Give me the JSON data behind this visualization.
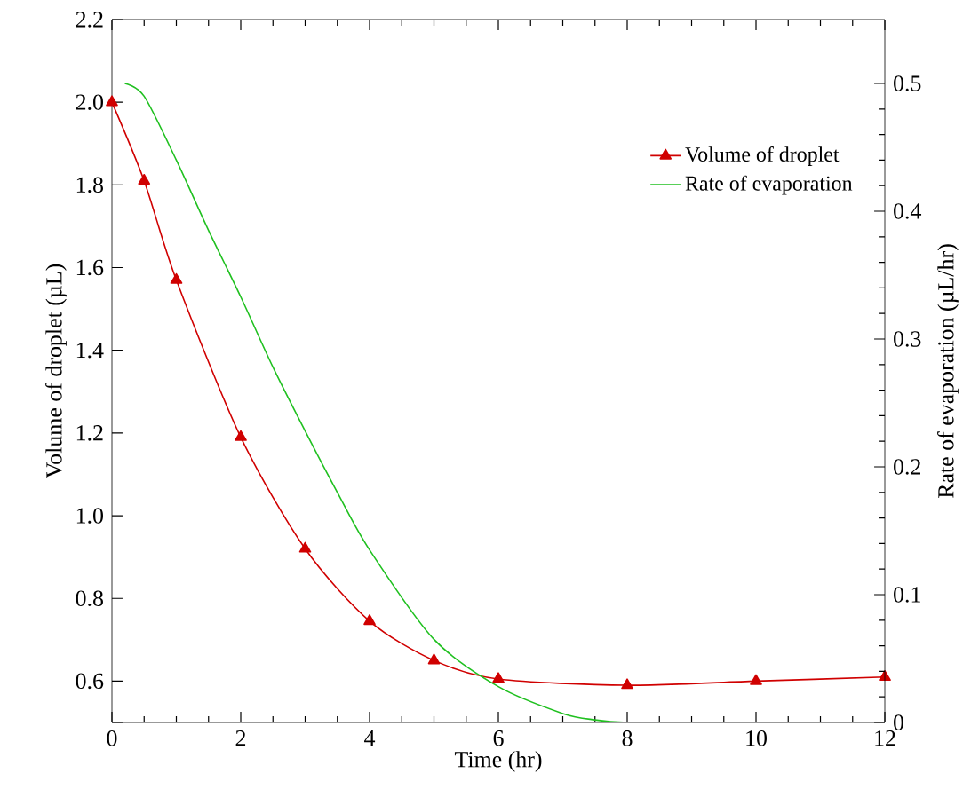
{
  "chart_data": {
    "type": "line",
    "xlabel": "Time (hr)",
    "ylabel": "Volume of droplet (µL)",
    "y2label": "Rate of evaporation (µL/hr)",
    "xlim": [
      0,
      12
    ],
    "xticks": [
      0,
      2,
      4,
      6,
      8,
      10,
      12
    ],
    "ylim": [
      0.5,
      2.2
    ],
    "yticks": [
      {
        "value": 0.5,
        "label": null
      },
      0.6,
      0.8,
      {
        "value": 1,
        "label": "1.0"
      },
      1.2,
      1.4,
      1.6,
      1.8,
      {
        "value": 2,
        "label": "2.0"
      },
      2.2
    ],
    "y2lim": [
      0,
      0.55
    ],
    "y2ticks": [
      0,
      0.1,
      0.2,
      0.3,
      0.4,
      0.5
    ],
    "grid": false,
    "legend": "top right",
    "line_style": "solid",
    "series": [
      {
        "name": "Volume of droplet",
        "color": "#d00000",
        "marker": "triangle",
        "x": [
          0,
          0.5,
          1,
          2,
          3,
          4,
          5,
          6,
          8,
          10,
          12
        ],
        "values": [
          2.0,
          1.81,
          1.57,
          1.19,
          0.92,
          0.745,
          0.65,
          0.605,
          0.59,
          0.6,
          0.61
        ]
      },
      {
        "name": "Rate of evaporation",
        "color": "#20c020",
        "marker": "none",
        "axis": "y2",
        "x": [
          0.2,
          0.5,
          1,
          1.5,
          2,
          2.5,
          3,
          3.5,
          4,
          5,
          6,
          7,
          7.5,
          8,
          9,
          10,
          11,
          12
        ],
        "values": [
          0.5,
          0.49,
          0.44,
          0.385,
          0.333,
          0.278,
          0.228,
          0.18,
          0.135,
          0.065,
          0.028,
          0.007,
          0.002,
          0,
          0,
          0,
          0,
          0
        ]
      }
    ]
  }
}
